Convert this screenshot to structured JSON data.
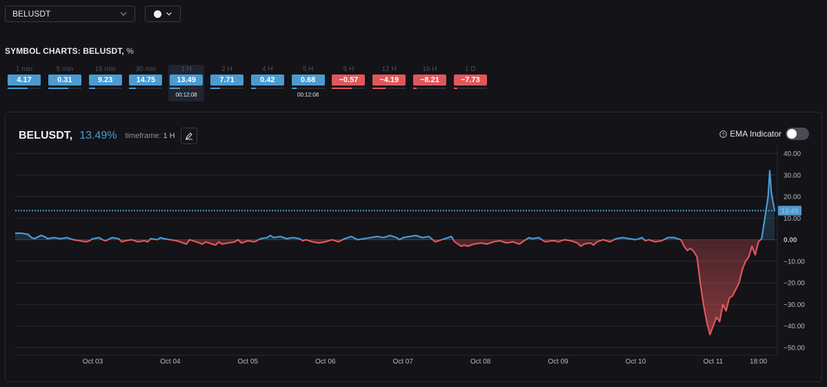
{
  "symbol_select": {
    "value": "BELUSDT"
  },
  "section": {
    "title": "SYMBOL CHARTS: BELUSDT,",
    "unit": "%"
  },
  "timeframes": [
    {
      "label": "1 min",
      "value": "4.17",
      "color": "#4b9bd1",
      "fill": 0.6,
      "timer": ""
    },
    {
      "label": "5 min",
      "value": "0.31",
      "color": "#4b9bd1",
      "fill": 0.6,
      "timer": ""
    },
    {
      "label": "15 min",
      "value": "9.23",
      "color": "#4b9bd1",
      "fill": 0.2,
      "timer": ""
    },
    {
      "label": "30 min",
      "value": "14.75",
      "color": "#4b9bd1",
      "fill": 0.2,
      "timer": ""
    },
    {
      "label": "1 H",
      "value": "13.49",
      "color": "#4b9bd1",
      "fill": 0.3,
      "timer": "00:12:08",
      "active": true
    },
    {
      "label": "2 H",
      "value": "7.71",
      "color": "#4b9bd1",
      "fill": 0.3,
      "timer": ""
    },
    {
      "label": "4 H",
      "value": "0.42",
      "color": "#4b9bd1",
      "fill": 0.15,
      "timer": ""
    },
    {
      "label": "5 H",
      "value": "0.68",
      "color": "#4b9bd1",
      "fill": 0.15,
      "timer": "00:12:08"
    },
    {
      "label": "6 H",
      "value": "−0.57",
      "color": "#e0575b",
      "fill": 0.6,
      "timer": ""
    },
    {
      "label": "12 H",
      "value": "−4.19",
      "color": "#e0575b",
      "fill": 0.4,
      "timer": ""
    },
    {
      "label": "16 H",
      "value": "−8.21",
      "color": "#e0575b",
      "fill": 0.1,
      "timer": ""
    },
    {
      "label": "1 D",
      "value": "−7.73",
      "color": "#e0575b",
      "fill": 0.1,
      "timer": ""
    }
  ],
  "chart_header": {
    "symbol": "BELUSDT,",
    "percent": "13.49%",
    "timeframe_label": "timeframe:",
    "timeframe_value": "1 H"
  },
  "ema": {
    "label": "EMA Indicator",
    "enabled": false
  },
  "colors": {
    "positive": "#4b9bd1",
    "negative": "#e0575b",
    "background": "#131318"
  },
  "chart_data": {
    "type": "line",
    "title": "BELUSDT, 13.49%",
    "ylabel": "%",
    "ylim": [
      -55,
      42
    ],
    "yticks": [
      "40.00",
      "30.00",
      "20.00",
      "10.00",
      "0.00",
      "−10.00",
      "−20.00",
      "−30.00",
      "−40.00",
      "−50.00"
    ],
    "ytick_values": [
      40,
      30,
      20,
      10,
      0,
      -10,
      -20,
      -30,
      -40,
      -50
    ],
    "xtick_labels": [
      "Oct 03",
      "Oct 04",
      "Oct 05",
      "Oct 06",
      "Oct 07",
      "Oct 08",
      "Oct 09",
      "Oct 10",
      "Oct 11",
      "18:00"
    ],
    "xtick_positions": [
      24,
      48,
      72,
      96,
      120,
      144,
      168,
      192,
      216,
      230
    ],
    "x_unit": "hours",
    "current_value": 13.49,
    "current_label": "13.49",
    "grid": true,
    "series": [
      {
        "points": [
          [
            0,
            3
          ],
          [
            2,
            3
          ],
          [
            4,
            2.5
          ],
          [
            5,
            1
          ],
          [
            6,
            0.5
          ],
          [
            8,
            2
          ],
          [
            9,
            1.5
          ],
          [
            10,
            0.5
          ],
          [
            12,
            1
          ],
          [
            14,
            0.5
          ],
          [
            16,
            1
          ],
          [
            18,
            0
          ],
          [
            20,
            -0.5
          ],
          [
            22,
            -1
          ],
          [
            23,
            -0.5
          ],
          [
            24,
            0.5
          ],
          [
            26,
            1
          ],
          [
            27,
            0
          ],
          [
            28,
            -0.5
          ],
          [
            30,
            1
          ],
          [
            32,
            0.5
          ],
          [
            33,
            -1
          ],
          [
            34,
            -0.5
          ],
          [
            36,
            0
          ],
          [
            38,
            -1
          ],
          [
            40,
            -0.5
          ],
          [
            41,
            -1
          ],
          [
            42,
            0.5
          ],
          [
            44,
            0
          ],
          [
            45,
            1
          ],
          [
            46,
            0.5
          ],
          [
            48,
            0
          ],
          [
            50,
            -0.5
          ],
          [
            52,
            -1.5
          ],
          [
            53,
            -2
          ],
          [
            54,
            0
          ],
          [
            56,
            -1
          ],
          [
            58,
            -2
          ],
          [
            59,
            -1
          ],
          [
            60,
            -1.5
          ],
          [
            62,
            -2.5
          ],
          [
            63,
            -1
          ],
          [
            64,
            -2
          ],
          [
            66,
            -1.5
          ],
          [
            68,
            -1
          ],
          [
            69,
            0
          ],
          [
            70,
            -1.5
          ],
          [
            72,
            -0.5
          ],
          [
            74,
            -1
          ],
          [
            76,
            0.5
          ],
          [
            78,
            1
          ],
          [
            79,
            2
          ],
          [
            80,
            1
          ],
          [
            82,
            1.5
          ],
          [
            84,
            0.5
          ],
          [
            86,
            1
          ],
          [
            88,
            0.5
          ],
          [
            89,
            -0.5
          ],
          [
            90,
            0
          ],
          [
            92,
            -1
          ],
          [
            94,
            -1.5
          ],
          [
            96,
            -1
          ],
          [
            98,
            0
          ],
          [
            100,
            -1
          ],
          [
            102,
            0.5
          ],
          [
            104,
            1.5
          ],
          [
            106,
            0
          ],
          [
            108,
            0.5
          ],
          [
            110,
            1
          ],
          [
            112,
            1.5
          ],
          [
            114,
            1
          ],
          [
            116,
            2
          ],
          [
            118,
            1
          ],
          [
            119,
            0
          ],
          [
            120,
            1
          ],
          [
            122,
            1.5
          ],
          [
            124,
            2
          ],
          [
            126,
            1
          ],
          [
            128,
            1.5
          ],
          [
            130,
            -1
          ],
          [
            132,
            0
          ],
          [
            134,
            1
          ],
          [
            135,
            1.5
          ],
          [
            136,
            -1
          ],
          [
            138,
            -3
          ],
          [
            139,
            -2.5
          ],
          [
            140,
            -3
          ],
          [
            142,
            -2
          ],
          [
            144,
            -1.5
          ],
          [
            146,
            -2
          ],
          [
            148,
            -1
          ],
          [
            150,
            -0.5
          ],
          [
            152,
            -1.5
          ],
          [
            154,
            -1
          ],
          [
            156,
            -2
          ],
          [
            158,
            0
          ],
          [
            159,
            1
          ],
          [
            160,
            0.5
          ],
          [
            162,
            1
          ],
          [
            163,
            0
          ],
          [
            164,
            -1
          ],
          [
            166,
            -0.5
          ],
          [
            167,
            -0.5
          ],
          [
            168,
            -1
          ],
          [
            170,
            0
          ],
          [
            172,
            -0.5
          ],
          [
            174,
            -1.5
          ],
          [
            175,
            -3
          ],
          [
            176,
            -2
          ],
          [
            178,
            -1.5
          ],
          [
            179,
            -2.5
          ],
          [
            180,
            -1
          ],
          [
            182,
            0
          ],
          [
            184,
            -1
          ],
          [
            186,
            0.5
          ],
          [
            188,
            1
          ],
          [
            190,
            0.5
          ],
          [
            192,
            0
          ],
          [
            194,
            1
          ],
          [
            195,
            -0.5
          ],
          [
            196,
            0
          ],
          [
            198,
            -1
          ],
          [
            200,
            -0.5
          ],
          [
            202,
            1
          ],
          [
            204,
            1
          ],
          [
            206,
            0
          ],
          [
            207,
            -3
          ],
          [
            208,
            -5
          ],
          [
            209,
            -4
          ],
          [
            210,
            -5.5
          ],
          [
            211,
            -8
          ],
          [
            212,
            -20
          ],
          [
            213,
            -30
          ],
          [
            214,
            -38
          ],
          [
            215,
            -44
          ],
          [
            216,
            -40
          ],
          [
            217,
            -36
          ],
          [
            218,
            -38
          ],
          [
            219,
            -30
          ],
          [
            220,
            -33
          ],
          [
            221,
            -27
          ],
          [
            222,
            -26
          ],
          [
            223,
            -23
          ],
          [
            224,
            -20
          ],
          [
            225,
            -14
          ],
          [
            226,
            -10
          ],
          [
            227,
            -8
          ],
          [
            228,
            -3
          ],
          [
            229,
            -7
          ],
          [
            230,
            -1
          ],
          [
            231,
            0.5
          ],
          [
            232,
            10
          ],
          [
            233,
            20
          ],
          [
            233.5,
            32
          ],
          [
            234,
            22
          ],
          [
            235,
            13.49
          ]
        ]
      }
    ]
  }
}
